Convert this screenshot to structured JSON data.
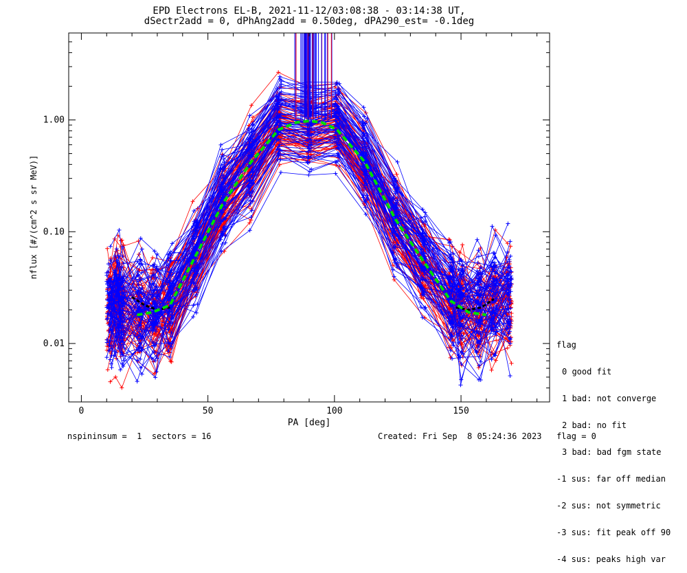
{
  "title_line1": "EPD Electrons EL-B, 2021-11-12/03:08:38 - 03:14:38 UT,",
  "title_line2": "dSectr2add = 0, dPhAng2add = 0.50deg, dPA290_est=  -0.1deg",
  "legend": {
    "title": "flag",
    "items": [
      "0 good fit",
      "1 bad: not converge",
      "2 bad: no fit",
      "3 bad: bad fgm state",
      "-1 sus: far off median",
      "-2 sus: not symmetric",
      "-3 sus: fit peak off 90",
      "-4 sus: peaks high var"
    ]
  },
  "footer": {
    "left": "nspininsum =  1  sectors = 16",
    "right": "Created: Fri Sep  8 05:24:36 2023   flag = 0"
  },
  "colors": {
    "series_a": "#0000ff",
    "series_b": "#ff0000",
    "fit": "#00dd00",
    "wing": "#000000"
  },
  "chart_data": {
    "type": "line",
    "xlabel": "PA [deg]",
    "ylabel": "nflux [#/(cm^2 s sr MeV)]",
    "xlim": [
      -5,
      185
    ],
    "ylim": [
      0.003,
      6
    ],
    "yscale": "log",
    "xticks": [
      0,
      50,
      100,
      150
    ],
    "xtick_labels": [
      "0",
      "50",
      "100",
      "150"
    ],
    "yticks": [
      0.01,
      0.1,
      1.0
    ],
    "ytick_labels": [
      "0.01",
      "0.10",
      "1.00"
    ],
    "pa_bins": [
      11,
      14,
      16,
      23,
      29,
      35,
      45,
      56,
      67,
      78,
      90,
      101,
      112,
      124,
      135,
      146,
      150,
      157,
      163,
      169
    ],
    "median_profile": [
      0.022,
      0.024,
      0.022,
      0.02,
      0.019,
      0.022,
      0.06,
      0.2,
      0.42,
      0.95,
      0.85,
      0.95,
      0.42,
      0.13,
      0.055,
      0.025,
      0.022,
      0.02,
      0.022,
      0.025
    ],
    "fit_curve": {
      "x": [
        22,
        28,
        35,
        45,
        56,
        67,
        78,
        85,
        90,
        95,
        101,
        112,
        124,
        135,
        146,
        153,
        160
      ],
      "y": [
        0.018,
        0.019,
        0.022,
        0.06,
        0.18,
        0.42,
        0.82,
        0.95,
        0.98,
        0.95,
        0.82,
        0.42,
        0.13,
        0.055,
        0.024,
        0.019,
        0.018
      ]
    },
    "wing_curve_left": {
      "x": [
        20,
        25,
        30,
        35
      ],
      "y": [
        0.026,
        0.022,
        0.02,
        0.021
      ]
    },
    "wing_curve_right": {
      "x": [
        148,
        153,
        158,
        163
      ],
      "y": [
        0.021,
        0.02,
        0.021,
        0.025
      ]
    },
    "n_traces_per_color": 70
  }
}
